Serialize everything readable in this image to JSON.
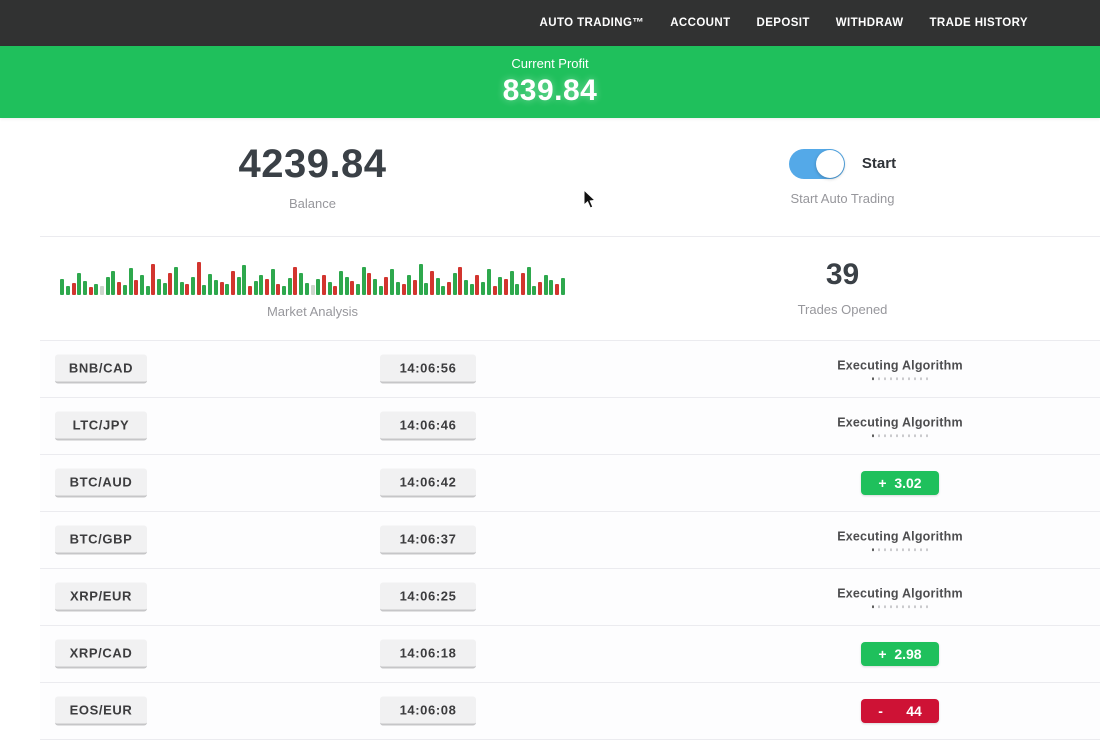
{
  "navbar": {
    "items": [
      {
        "label": "AUTO TRADING™"
      },
      {
        "label": "ACCOUNT"
      },
      {
        "label": "DEPOSIT"
      },
      {
        "label": "WITHDRAW"
      },
      {
        "label": "TRADE HISTORY"
      }
    ]
  },
  "profit_banner": {
    "label": "Current Profit",
    "value": "839.84"
  },
  "stats": {
    "balance": {
      "value": "4239.84",
      "label": "Balance"
    },
    "auto_trading": {
      "toggle_on": true,
      "toggle_label": "Start",
      "label": "Start Auto Trading"
    },
    "market_analysis": {
      "label": "Market Analysis",
      "bars": [
        "g16",
        "g9",
        "r12",
        "g22",
        "g14",
        "r8",
        "g11",
        "p9",
        "g18",
        "g24",
        "r13",
        "g10",
        "g27",
        "r15",
        "g20",
        "g9",
        "r31",
        "g16",
        "g12",
        "r22",
        "g28",
        "g13",
        "r11",
        "g18",
        "r33",
        "g10",
        "g21",
        "g15",
        "r13",
        "g11",
        "r24",
        "g18",
        "g30",
        "r9",
        "g14",
        "g20",
        "r16",
        "g26",
        "r11",
        "g9",
        "g17",
        "r28",
        "g22",
        "g12",
        "p10",
        "g16",
        "r20",
        "g13",
        "r9",
        "g24",
        "g18",
        "r14",
        "g11",
        "g28",
        "r22",
        "g16",
        "g9",
        "r18",
        "g26",
        "g13",
        "r11",
        "g20",
        "r15",
        "g31",
        "g12",
        "r24",
        "g17",
        "g9",
        "r13",
        "g22",
        "r28",
        "g15",
        "g11",
        "r20",
        "g13",
        "g26",
        "r9",
        "g18",
        "r16",
        "g24",
        "g11",
        "r22",
        "g28",
        "g9",
        "r13",
        "g20",
        "g15",
        "r11",
        "g17"
      ]
    },
    "trades_opened": {
      "value": "39",
      "label": "Trades Opened"
    }
  },
  "trades": {
    "executing_label": "Executing Algorithm",
    "rows": [
      {
        "pair": "BNB/CAD",
        "time": "14:06:56",
        "status": "executing"
      },
      {
        "pair": "LTC/JPY",
        "time": "14:06:46",
        "status": "executing"
      },
      {
        "pair": "BTC/AUD",
        "time": "14:06:42",
        "status": "profit",
        "result": "+  3.02"
      },
      {
        "pair": "BTC/GBP",
        "time": "14:06:37",
        "status": "executing"
      },
      {
        "pair": "XRP/EUR",
        "time": "14:06:25",
        "status": "executing"
      },
      {
        "pair": "XRP/CAD",
        "time": "14:06:18",
        "status": "profit",
        "result": "+  2.98"
      },
      {
        "pair": "EOS/EUR",
        "time": "14:06:08",
        "status": "loss",
        "result": "-      44"
      }
    ]
  },
  "colors": {
    "accent_green": "#1fc05c",
    "loss_red": "#ce1235",
    "toggle_blue": "#54a9e8",
    "navbar_bg": "#313232",
    "bar_green": "#2ea84d",
    "bar_red": "#d2352f",
    "bar_pale": "#ccd6cc"
  }
}
